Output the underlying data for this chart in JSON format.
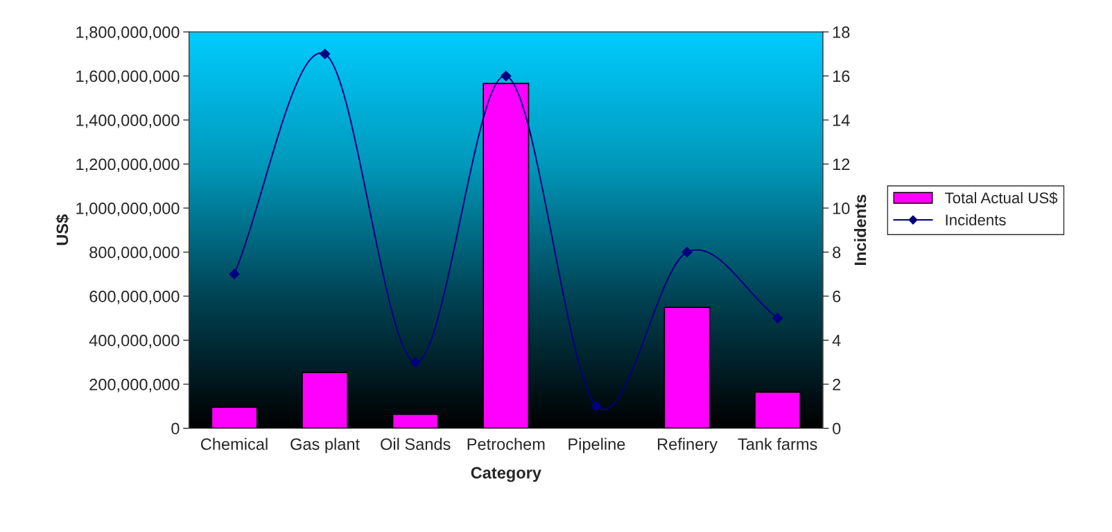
{
  "chart_data": {
    "type": "bar",
    "xlabel": "Category",
    "ylabel": "US$",
    "y2label": "Incidents",
    "categories": [
      "Chemical",
      "Gas plant",
      "Oil Sands",
      "Petrochem",
      "Pipeline",
      "Refinery",
      "Tank farms"
    ],
    "series": [
      {
        "name": "Total Actual US$",
        "color": "#ff00ff",
        "values": [
          95000000,
          253000000,
          63000000,
          1566000000,
          4000000,
          549000000,
          164000000
        ]
      },
      {
        "name": "Incidents",
        "type": "line",
        "axis": "y2",
        "color": "#000080",
        "marker": "diamond",
        "values": [
          7,
          17,
          3,
          16,
          1,
          8,
          5
        ]
      }
    ],
    "ylim": [
      0,
      1800000000
    ],
    "yticks": [
      {
        "value": 0,
        "label": "0"
      },
      {
        "value": 200000000,
        "label": "200,000,000"
      },
      {
        "value": 400000000,
        "label": "400,000,000"
      },
      {
        "value": 600000000,
        "label": "600,000,000"
      },
      {
        "value": 800000000,
        "label": "800,000,000"
      },
      {
        "value": 1000000000,
        "label": "1,000,000,000"
      },
      {
        "value": 1200000000,
        "label": "1,200,000,000"
      },
      {
        "value": 1400000000,
        "label": "1,400,000,000"
      },
      {
        "value": 1600000000,
        "label": "1,600,000,000"
      },
      {
        "value": 1800000000,
        "label": "1,800,000,000"
      }
    ],
    "y2lim": [
      0,
      18
    ],
    "y2ticks": [
      0,
      2,
      4,
      6,
      8,
      10,
      12,
      14,
      16,
      18
    ],
    "grid": false,
    "legend": "right"
  }
}
